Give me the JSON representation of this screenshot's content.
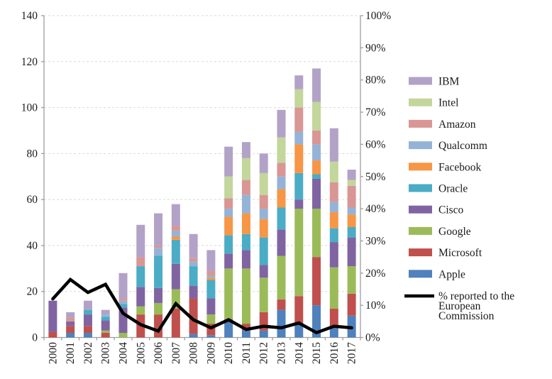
{
  "chart_data": {
    "type": "bar",
    "stacked": true,
    "title": "",
    "xlabel": "",
    "ylabel": "",
    "legend_position": "right",
    "grid": true,
    "categories": [
      "2000",
      "2001",
      "2002",
      "2003",
      "2004",
      "2005",
      "2006",
      "2007",
      "2008",
      "2009",
      "2010",
      "2011",
      "2012",
      "2013",
      "2014",
      "2015",
      "2016",
      "2017"
    ],
    "series": [
      {
        "name": "Apple",
        "color": "#4F81BD",
        "values": [
          0,
          2,
          2,
          0,
          0,
          0,
          0,
          0,
          1.5,
          1,
          7,
          3,
          3,
          12,
          6,
          14,
          4.5,
          9.5
        ]
      },
      {
        "name": "Microsoft",
        "color": "#C0504D",
        "values": [
          2.5,
          3,
          3,
          2,
          0,
          10,
          10,
          12.5,
          15.5,
          5,
          1,
          3,
          8,
          4.5,
          12,
          21,
          8,
          9.5
        ]
      },
      {
        "name": "Google",
        "color": "#9BBB59",
        "values": [
          0,
          0,
          0,
          1,
          2,
          3.5,
          5,
          8.5,
          0,
          4,
          22,
          24,
          15,
          19,
          38,
          21,
          18,
          12
        ]
      },
      {
        "name": "Cisco",
        "color": "#8064A2",
        "values": [
          13.5,
          2,
          5,
          4.5,
          11,
          8.5,
          6.5,
          11,
          5.5,
          7,
          6.5,
          8,
          5.5,
          11.5,
          4,
          13,
          11,
          12.5
        ]
      },
      {
        "name": "Oracle",
        "color": "#4BACC6",
        "values": [
          0,
          0,
          2,
          1.5,
          1.5,
          9,
          14,
          10.5,
          8.5,
          8,
          8,
          7,
          12,
          9.5,
          11.5,
          2,
          6,
          4.5
        ]
      },
      {
        "name": "Facebook",
        "color": "#F79646",
        "values": [
          0,
          0,
          0,
          0,
          0,
          0,
          0,
          1.5,
          0,
          1,
          8,
          9,
          8,
          8,
          12.5,
          6,
          7,
          5.5
        ]
      },
      {
        "name": "Qualcomm",
        "color": "#95B3D7",
        "values": [
          0,
          0,
          0,
          1,
          1.5,
          0,
          3.5,
          2.5,
          2,
          1,
          3.5,
          8,
          4.5,
          5.5,
          5.5,
          7,
          4.5,
          3
        ]
      },
      {
        "name": "Amazon",
        "color": "#D99694",
        "values": [
          0,
          1.5,
          0,
          0,
          1,
          4,
          1,
          2,
          1.5,
          2,
          4.5,
          6.5,
          6,
          6,
          10.5,
          6,
          8.5,
          9.5
        ]
      },
      {
        "name": "Intel",
        "color": "#C3D69B",
        "values": [
          0,
          0,
          0,
          0,
          0,
          0,
          0,
          0,
          0,
          0,
          9.5,
          9.5,
          9.5,
          11,
          8,
          12.5,
          9,
          2.5
        ]
      },
      {
        "name": "IBM",
        "color": "#B3A2C7",
        "values": [
          0,
          2.5,
          4,
          2,
          11,
          14,
          14,
          9.5,
          10.5,
          9,
          13,
          7,
          8.5,
          12,
          6,
          14.5,
          14.5,
          4.5
        ]
      }
    ],
    "line_overlay": {
      "name": "% reported to the European Commission",
      "legend_lines": [
        "% reported to the",
        "European",
        "Commission"
      ],
      "color": "#000000",
      "axis": "right",
      "values_pct": [
        12,
        18,
        14,
        16.5,
        7.5,
        4,
        2,
        10.5,
        5.5,
        3,
        5.5,
        2.5,
        3.5,
        3,
        4.5,
        1.5,
        3.5,
        3
      ]
    },
    "left_axis": {
      "min": 0,
      "max": 140,
      "step": 20,
      "tick_labels": [
        "0",
        "20",
        "40",
        "60",
        "80",
        "100",
        "120",
        "140"
      ]
    },
    "right_axis": {
      "min": 0,
      "max": 100,
      "step": 10,
      "tick_labels": [
        "0%",
        "10%",
        "20%",
        "30%",
        "40%",
        "50%",
        "60%",
        "70%",
        "80%",
        "90%",
        "100%"
      ]
    },
    "legend_order_top_to_bottom": [
      "IBM",
      "Intel",
      "Amazon",
      "Qualcomm",
      "Facebook",
      "Oracle",
      "Cisco",
      "Google",
      "Microsoft",
      "Apple"
    ]
  },
  "colors": {
    "background": "#ffffff",
    "gridline": "#d9d9d9",
    "axis": "#9e9e9e",
    "text": "#1a1a1a"
  }
}
